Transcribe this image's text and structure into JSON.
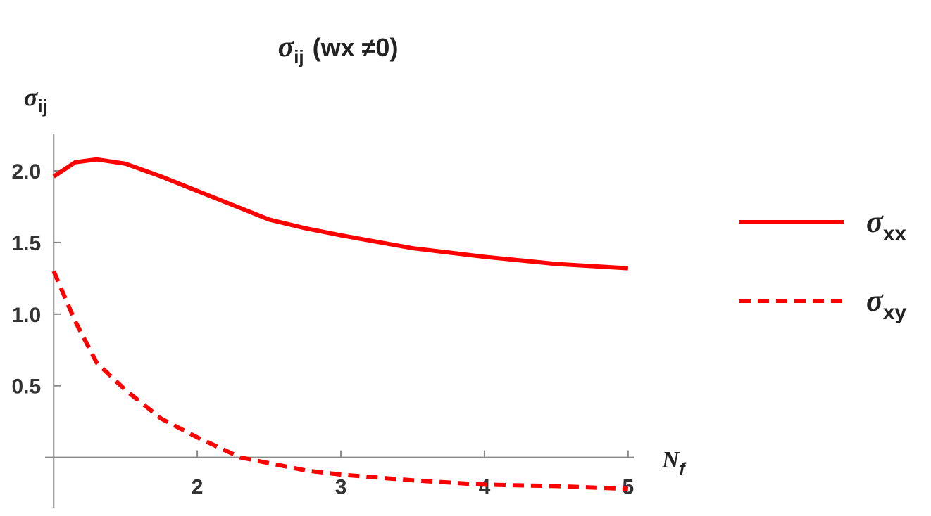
{
  "chart_data": {
    "type": "line",
    "title": {
      "symbol": "σ",
      "subscript": "ij",
      "text": "(wx ≠0)"
    },
    "y_label": {
      "symbol": "σ",
      "subscript": "ij"
    },
    "x_label": {
      "symbol": "N",
      "subscript": "f"
    },
    "x": [
      1,
      1.15,
      1.3,
      1.5,
      1.75,
      2,
      2.3,
      2.5,
      2.75,
      3,
      3.5,
      4,
      4.5,
      5
    ],
    "series": [
      {
        "name": {
          "symbol": "σ",
          "subscript": "xx"
        },
        "color": "#ff0000",
        "dash": false,
        "values": [
          1.96,
          2.06,
          2.08,
          2.05,
          1.96,
          1.86,
          1.74,
          1.66,
          1.6,
          1.55,
          1.46,
          1.4,
          1.35,
          1.32
        ]
      },
      {
        "name": {
          "symbol": "σ",
          "subscript": "xy"
        },
        "color": "#ff0000",
        "dash": true,
        "values": [
          1.3,
          0.95,
          0.66,
          0.47,
          0.27,
          0.14,
          0.0,
          -0.04,
          -0.09,
          -0.12,
          -0.16,
          -0.19,
          -0.2,
          -0.22
        ]
      }
    ],
    "xlim": [
      0.94,
      5.04
    ],
    "ylim": [
      -0.35,
      2.26
    ],
    "xticks": [
      2,
      3,
      4,
      5
    ],
    "yticks": [
      0.5,
      {
        "value": 1,
        "label": "1.0"
      },
      1.5,
      {
        "value": 2,
        "label": "2.0"
      }
    ],
    "legend": "right"
  }
}
